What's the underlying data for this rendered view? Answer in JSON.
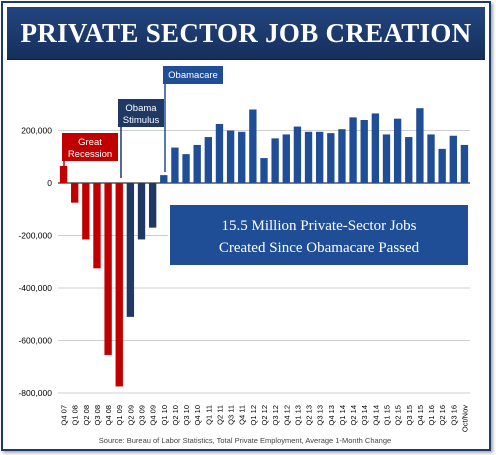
{
  "title": "PRIVATE SECTOR JOB CREATION",
  "source": "Source: Bureau of Labor Statistics, Total Private Employment, Average 1-Month Change",
  "colors": {
    "title_bg": "#1d3a6e",
    "recession_bar": "#c00000",
    "stimulus_bar": "#1f3864",
    "obamacare_bar": "#1f4e96",
    "callout_bg": "#1f4e96",
    "annotation_red": "#c00000",
    "annotation_navy": "#1f3864"
  },
  "annotations": [
    {
      "label": "Great Recession",
      "color": "#c00000",
      "category_index": 0
    },
    {
      "label": "Obama Stimulus",
      "color": "#1f3864",
      "category_index": 7
    },
    {
      "label": "Obamacare",
      "color": "#1f4e96",
      "category_index": 11
    }
  ],
  "callout": {
    "line1": "15.5 Million Private-Sector Jobs",
    "line2": "Created Since Obamacare Passed"
  },
  "chart_data": {
    "type": "bar",
    "title": "PRIVATE SECTOR JOB CREATION",
    "ylim": [
      -800000,
      250000
    ],
    "yticks": [
      200000,
      0,
      -200000,
      -400000,
      -600000,
      -800000
    ],
    "ytick_labels": [
      "200,000",
      "0",
      "-200,000",
      "-400,000",
      "-600,000",
      "-800,000"
    ],
    "grid": true,
    "categories": [
      "Q4 07",
      "Q1 08",
      "Q2 08",
      "Q3 08",
      "Q4 08",
      "Q1 09",
      "Q2 09",
      "Q3 09",
      "Q4 09",
      "Q1 10",
      "Q2 10",
      "Q3 10",
      "Q4 10",
      "Q1 11",
      "Q2 11",
      "Q3 11",
      "Q4 11",
      "Q1 12",
      "Q2 12",
      "Q3 12",
      "Q4 12",
      "Q1 13",
      "Q2 13",
      "Q3 13",
      "Q4 13",
      "Q1 14",
      "Q2 14",
      "Q3 14",
      "Q4 14",
      "Q1 15",
      "Q2 15",
      "Q3 15",
      "Q4 15",
      "Q1 16",
      "Q2 16",
      "Q3 16",
      "Oct/Nov"
    ],
    "tick_labels": [
      "Q4 07",
      "Q1 08",
      "Q2 08",
      "Q3 08",
      "Q4 08",
      "Q1 09",
      "Q2 09",
      "Q3 09",
      "Q4 09",
      "Q1 10",
      "Q2 10",
      "Q3 10",
      "Q4 10",
      "Q1 11",
      "Q2 11",
      "Q3 11",
      "Q4 11",
      "Q1 12",
      "Q2 12",
      "Q3 12",
      "Q4 12",
      "Q1 13",
      "Q2 13",
      "Q3 13",
      "Q4 13",
      "Q1 14",
      "Q2 14",
      "Q3 14",
      "Q4 14",
      "Q1 15",
      "Q2 15",
      "Q3 15",
      "Q4 15",
      "Q1 16",
      "Q2 16",
      "Q3 16",
      "Oct/Nov"
    ],
    "visible_tick_indices": [
      0,
      1,
      2,
      3,
      4,
      5,
      6,
      7,
      8,
      9,
      10,
      11,
      12,
      13,
      14,
      15,
      16,
      17,
      18,
      19,
      20,
      21,
      22,
      23,
      24,
      25,
      26,
      27,
      28,
      29,
      30,
      31,
      32,
      33,
      34,
      35,
      36
    ],
    "values": [
      65000,
      -75000,
      -215000,
      -325000,
      -655000,
      -775000,
      -510000,
      -215000,
      -170000,
      30000,
      135000,
      110000,
      145000,
      175000,
      225000,
      200000,
      195000,
      280000,
      95000,
      170000,
      185000,
      215000,
      195000,
      195000,
      190000,
      205000,
      250000,
      240000,
      265000,
      185000,
      245000,
      175000,
      285000,
      185000,
      130000,
      180000,
      145000
    ],
    "bar_colors": [
      "#c00000",
      "#c00000",
      "#c00000",
      "#c00000",
      "#c00000",
      "#c00000",
      "#1f3864",
      "#1f3864",
      "#1f3864",
      "#1f4e96",
      "#1f4e96",
      "#1f4e96",
      "#1f4e96",
      "#1f4e96",
      "#1f4e96",
      "#1f4e96",
      "#1f4e96",
      "#1f4e96",
      "#1f4e96",
      "#1f4e96",
      "#1f4e96",
      "#1f4e96",
      "#1f4e96",
      "#1f4e96",
      "#1f4e96",
      "#1f4e96",
      "#1f4e96",
      "#1f4e96",
      "#1f4e96",
      "#1f4e96",
      "#1f4e96",
      "#1f4e96",
      "#1f4e96",
      "#1f4e96",
      "#1f4e96",
      "#1f4e96",
      "#1f4e96"
    ]
  }
}
